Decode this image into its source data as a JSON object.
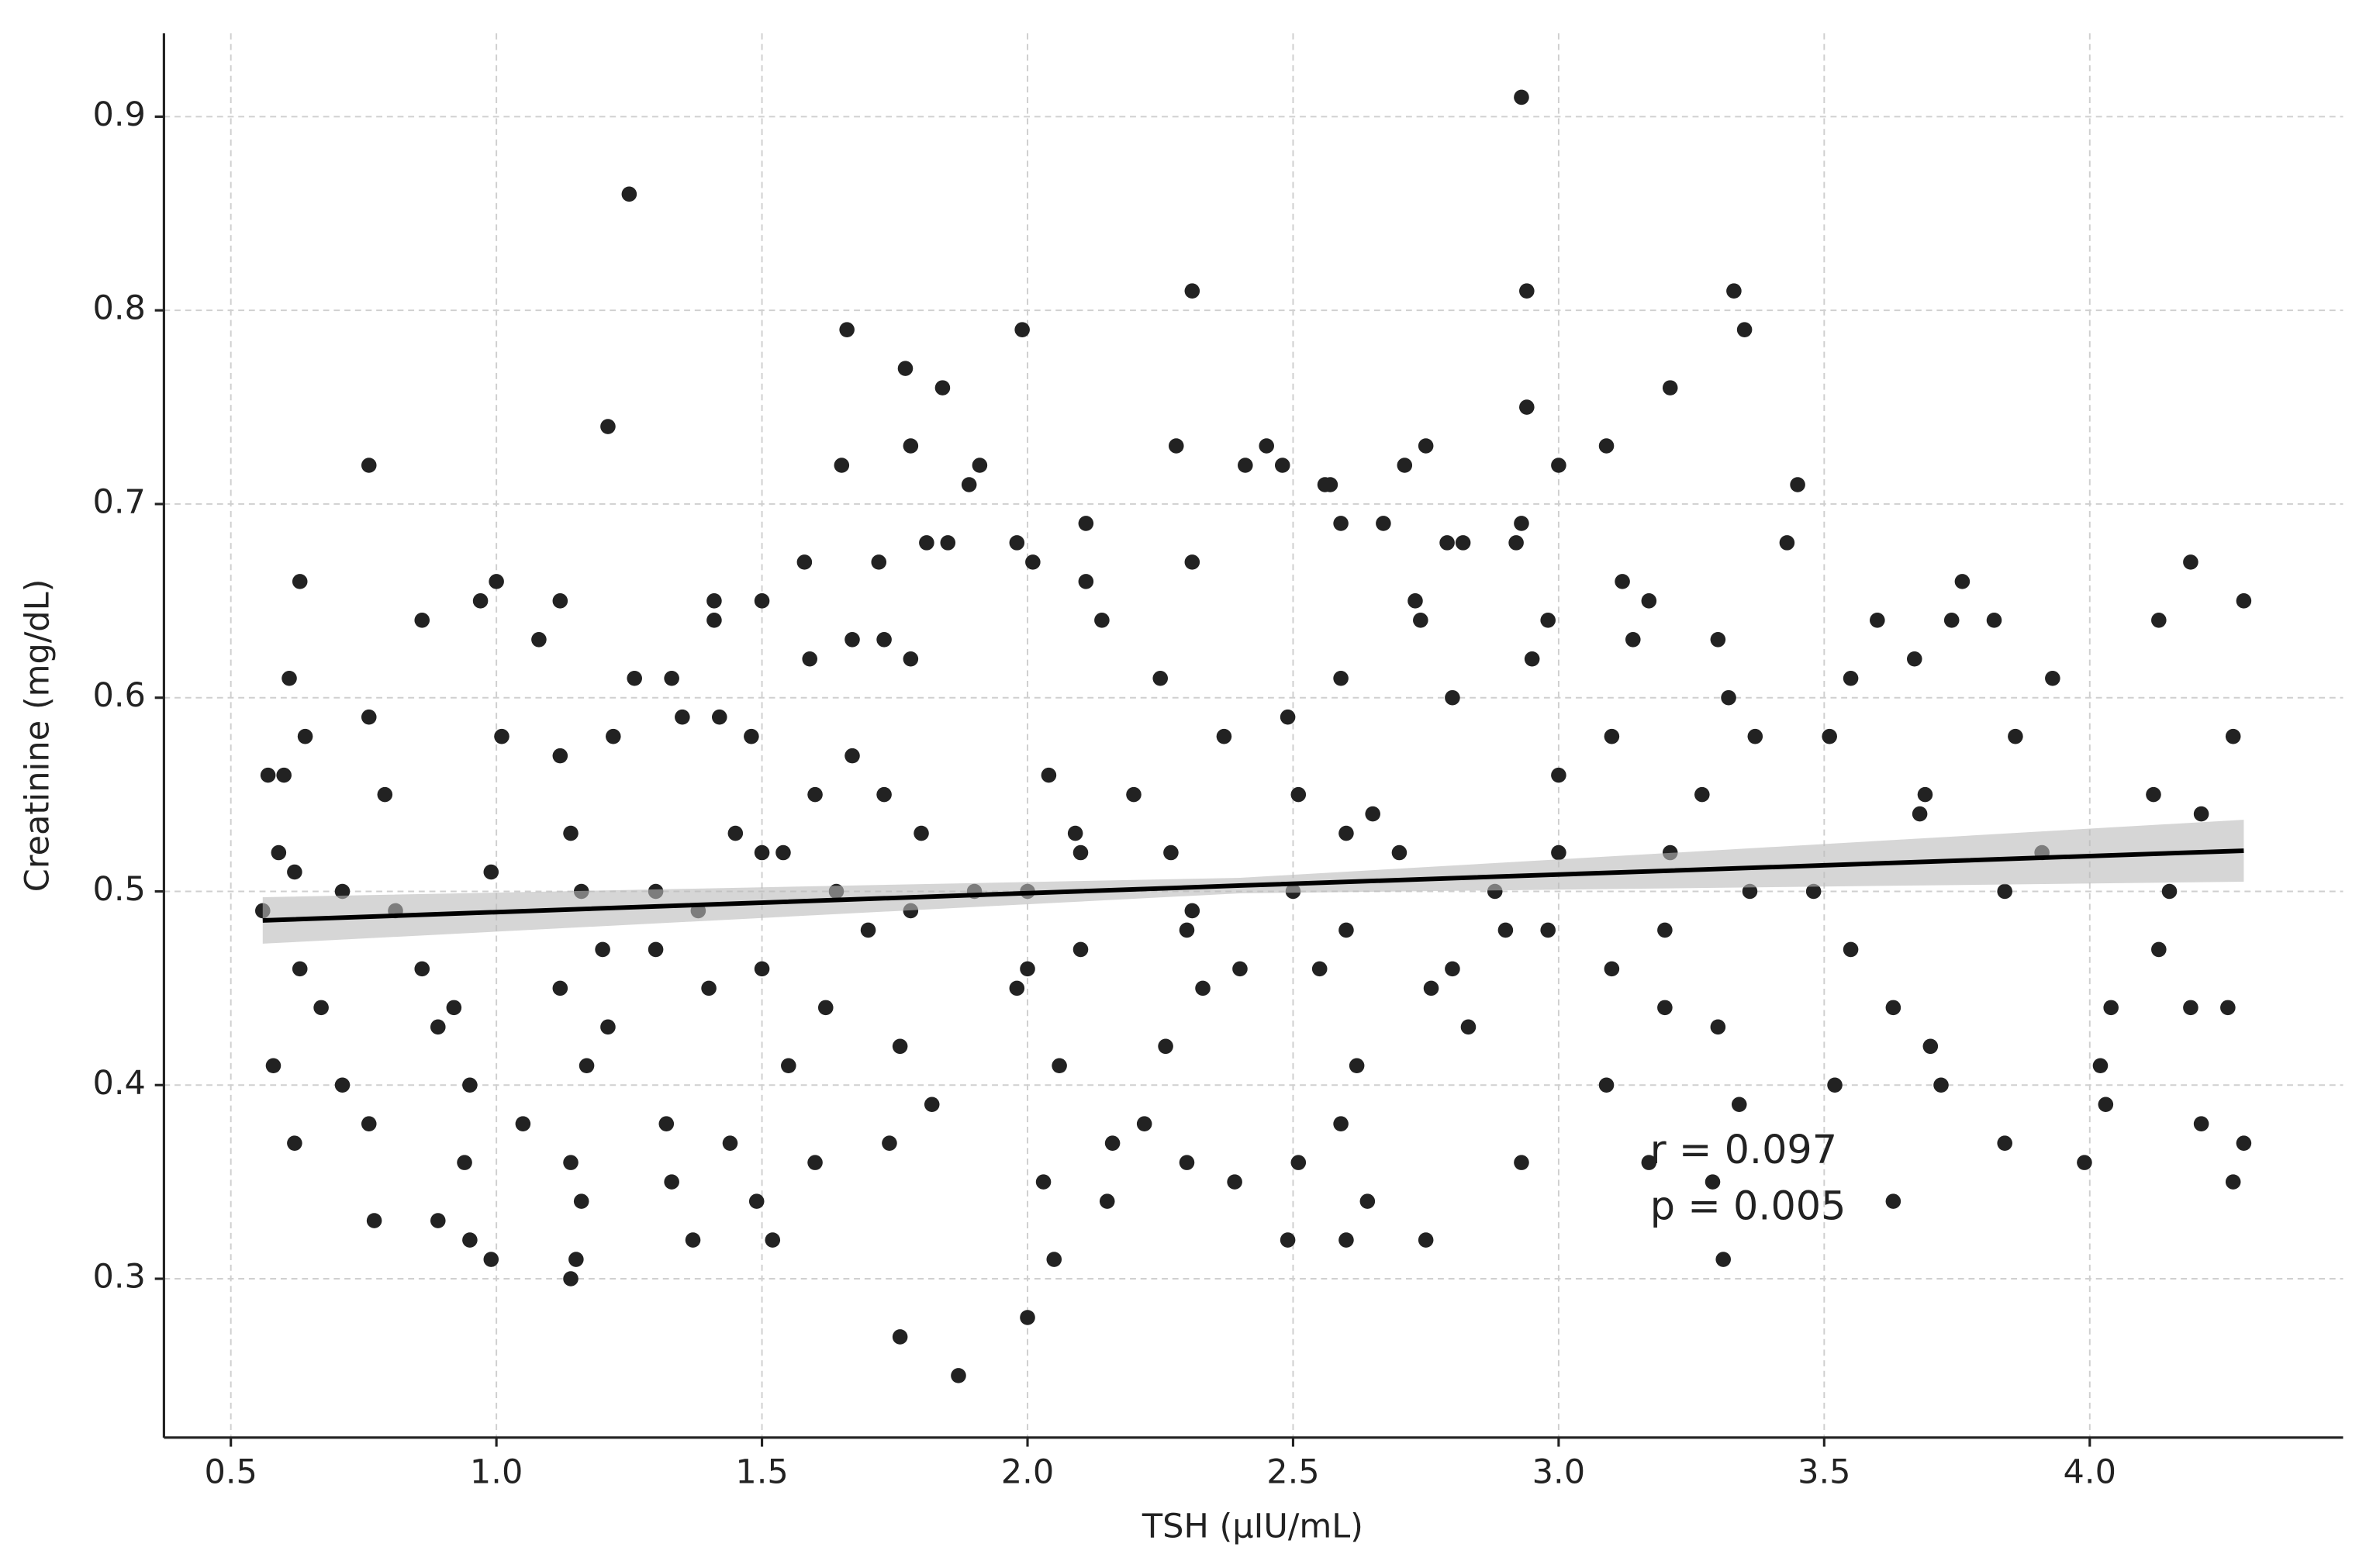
{
  "chart_data": {
    "type": "scatter",
    "x_label": "TSH (µIU/mL)",
    "y_label": "Creatinine (mg/dL)",
    "xlim": [
      0.374,
      4.477
    ],
    "ylim": [
      0.218,
      0.943
    ],
    "xticks": [
      0.5,
      {
        "value": 1.0,
        "label": "1.0"
      },
      1.5,
      {
        "value": 2.0,
        "label": "2.0"
      },
      2.5,
      {
        "value": 3.0,
        "label": "3.0"
      },
      3.5,
      {
        "value": 4.0,
        "label": "4.0"
      }
    ],
    "yticks": [
      0.3,
      0.4,
      0.5,
      0.6,
      0.7,
      0.8,
      0.9
    ],
    "grid": true,
    "color": "#222222",
    "x": [
      2.93,
      1.25,
      2.31,
      2.94,
      3.33,
      1.66,
      1.99,
      3.35,
      1.77,
      1.84,
      3.21,
      2.94,
      1.21,
      1.78,
      2.28,
      2.45,
      2.75,
      3.09,
      0.76,
      1.65,
      1.91,
      2.41,
      2.48,
      2.71,
      3.0,
      1.89,
      2.56,
      2.57,
      3.45,
      2.93,
      2.11,
      2.59,
      2.67,
      1.81,
      1.85,
      1.98,
      2.79,
      2.82,
      2.92,
      3.43,
      1.0,
      0.63,
      1.72,
      2.01,
      2.31,
      4.19,
      1.58,
      3.76,
      3.12,
      2.11,
      0.97,
      1.12,
      1.41,
      1.5,
      2.73,
      3.17,
      4.29,
      0.86,
      1.41,
      2.14,
      2.74,
      3.6,
      3.74,
      3.82,
      4.13,
      1.08,
      1.67,
      1.73,
      3.14,
      3.3,
      2.98,
      1.59,
      1.78,
      2.95,
      3.67,
      0.61,
      1.26,
      1.33,
      2.25,
      2.59,
      3.55,
      3.93,
      0.76,
      1.35,
      1.42,
      2.49,
      2.8,
      3.32,
      0.64,
      1.01,
      1.22,
      1.48,
      2.37,
      3.1,
      3.37,
      3.51,
      3.86,
      4.27,
      0.57,
      0.6,
      1.12,
      1.67,
      2.04,
      3.0,
      0.79,
      1.73,
      2.51,
      3.27,
      3.69,
      4.12,
      0.59,
      1.14,
      1.45,
      2.09,
      2.65,
      3.68,
      4.21,
      0.62,
      0.99,
      1.54,
      2.27,
      3.21,
      3.91,
      0.56,
      0.71,
      1.16,
      1.64,
      2.0,
      2.88,
      3.36,
      3.84,
      4.15,
      0.81,
      1.38,
      1.78,
      2.31,
      2.6,
      2.98,
      3.48,
      0.63,
      0.86,
      1.3,
      1.5,
      2.1,
      2.55,
      3.1,
      3.55,
      4.13,
      0.67,
      0.92,
      1.12,
      1.62,
      1.98,
      2.33,
      2.76,
      3.2,
      3.63,
      4.19,
      4.26,
      0.89,
      1.21,
      1.76,
      2.26,
      2.83,
      3.3,
      3.7,
      4.04,
      0.58,
      0.95,
      1.17,
      1.55,
      2.06,
      2.62,
      3.09,
      3.52,
      3.72,
      4.02,
      0.71,
      1.05,
      1.32,
      1.82,
      2.22,
      2.59,
      3.34,
      4.03,
      0.62,
      0.76,
      1.44,
      1.74,
      2.16,
      2.93,
      3.84,
      4.21,
      4.29,
      0.94,
      1.14,
      1.6,
      2.3,
      2.51,
      3.17,
      3.99,
      1.33,
      2.03,
      2.39,
      3.29,
      4.27,
      0.77,
      0.89,
      1.16,
      1.49,
      2.15,
      2.64,
      3.63,
      0.95,
      1.37,
      1.52,
      2.49,
      2.6,
      2.75,
      0.99,
      1.15,
      2.05,
      3.31,
      1.14,
      1.76,
      2.0,
      1.87,
      1.3,
      1.5,
      1.7,
      1.9,
      2.1,
      2.3,
      2.5,
      2.7,
      2.9,
      1.2,
      1.4,
      1.6,
      1.8,
      2.0,
      2.2,
      2.4,
      2.6,
      2.8,
      3.0,
      3.2
    ],
    "values": [
      0.91,
      0.86,
      0.81,
      0.81,
      0.81,
      0.79,
      0.79,
      0.79,
      0.77,
      0.76,
      0.76,
      0.75,
      0.74,
      0.73,
      0.73,
      0.73,
      0.73,
      0.73,
      0.72,
      0.72,
      0.72,
      0.72,
      0.72,
      0.72,
      0.72,
      0.71,
      0.71,
      0.71,
      0.71,
      0.69,
      0.69,
      0.69,
      0.69,
      0.68,
      0.68,
      0.68,
      0.68,
      0.68,
      0.68,
      0.68,
      0.66,
      0.66,
      0.67,
      0.67,
      0.67,
      0.67,
      0.67,
      0.66,
      0.66,
      0.66,
      0.65,
      0.65,
      0.65,
      0.65,
      0.65,
      0.65,
      0.65,
      0.64,
      0.64,
      0.64,
      0.64,
      0.64,
      0.64,
      0.64,
      0.64,
      0.63,
      0.63,
      0.63,
      0.63,
      0.63,
      0.64,
      0.62,
      0.62,
      0.62,
      0.62,
      0.61,
      0.61,
      0.61,
      0.61,
      0.61,
      0.61,
      0.61,
      0.59,
      0.59,
      0.59,
      0.59,
      0.6,
      0.6,
      0.58,
      0.58,
      0.58,
      0.58,
      0.58,
      0.58,
      0.58,
      0.58,
      0.58,
      0.58,
      0.56,
      0.56,
      0.57,
      0.57,
      0.56,
      0.56,
      0.55,
      0.55,
      0.55,
      0.55,
      0.55,
      0.55,
      0.52,
      0.53,
      0.53,
      0.53,
      0.54,
      0.54,
      0.54,
      0.51,
      0.51,
      0.52,
      0.52,
      0.52,
      0.52,
      0.49,
      0.5,
      0.5,
      0.5,
      0.5,
      0.5,
      0.5,
      0.5,
      0.5,
      0.49,
      0.49,
      0.49,
      0.49,
      0.48,
      0.48,
      0.5,
      0.46,
      0.46,
      0.47,
      0.46,
      0.47,
      0.46,
      0.46,
      0.47,
      0.47,
      0.44,
      0.44,
      0.45,
      0.44,
      0.45,
      0.45,
      0.45,
      0.44,
      0.44,
      0.44,
      0.44,
      0.43,
      0.43,
      0.42,
      0.42,
      0.43,
      0.43,
      0.42,
      0.44,
      0.41,
      0.4,
      0.41,
      0.41,
      0.41,
      0.41,
      0.4,
      0.4,
      0.4,
      0.41,
      0.4,
      0.38,
      0.38,
      0.39,
      0.38,
      0.38,
      0.39,
      0.39,
      0.37,
      0.38,
      0.37,
      0.37,
      0.37,
      0.36,
      0.37,
      0.38,
      0.37,
      0.36,
      0.36,
      0.36,
      0.36,
      0.36,
      0.36,
      0.36,
      0.35,
      0.35,
      0.35,
      0.35,
      0.35,
      0.33,
      0.33,
      0.34,
      0.34,
      0.34,
      0.34,
      0.34,
      0.32,
      0.32,
      0.32,
      0.32,
      0.32,
      0.32,
      0.31,
      0.31,
      0.31,
      0.31,
      0.3,
      0.27,
      0.28,
      0.25,
      0.5,
      0.52,
      0.48,
      0.5,
      0.52,
      0.48,
      0.5,
      0.52,
      0.48,
      0.47,
      0.45,
      0.55,
      0.53,
      0.46,
      0.55,
      0.46,
      0.53,
      0.46,
      0.52,
      0.48
    ],
    "fit": {
      "x": [
        0.56,
        2.4,
        4.29
      ],
      "y": [
        0.485,
        0.503,
        0.521
      ],
      "lower": [
        0.473,
        0.499,
        0.505
      ],
      "upper": [
        0.497,
        0.507,
        0.537
      ]
    },
    "annotations": [
      "r = 0.097",
      "p = 0.005"
    ]
  }
}
